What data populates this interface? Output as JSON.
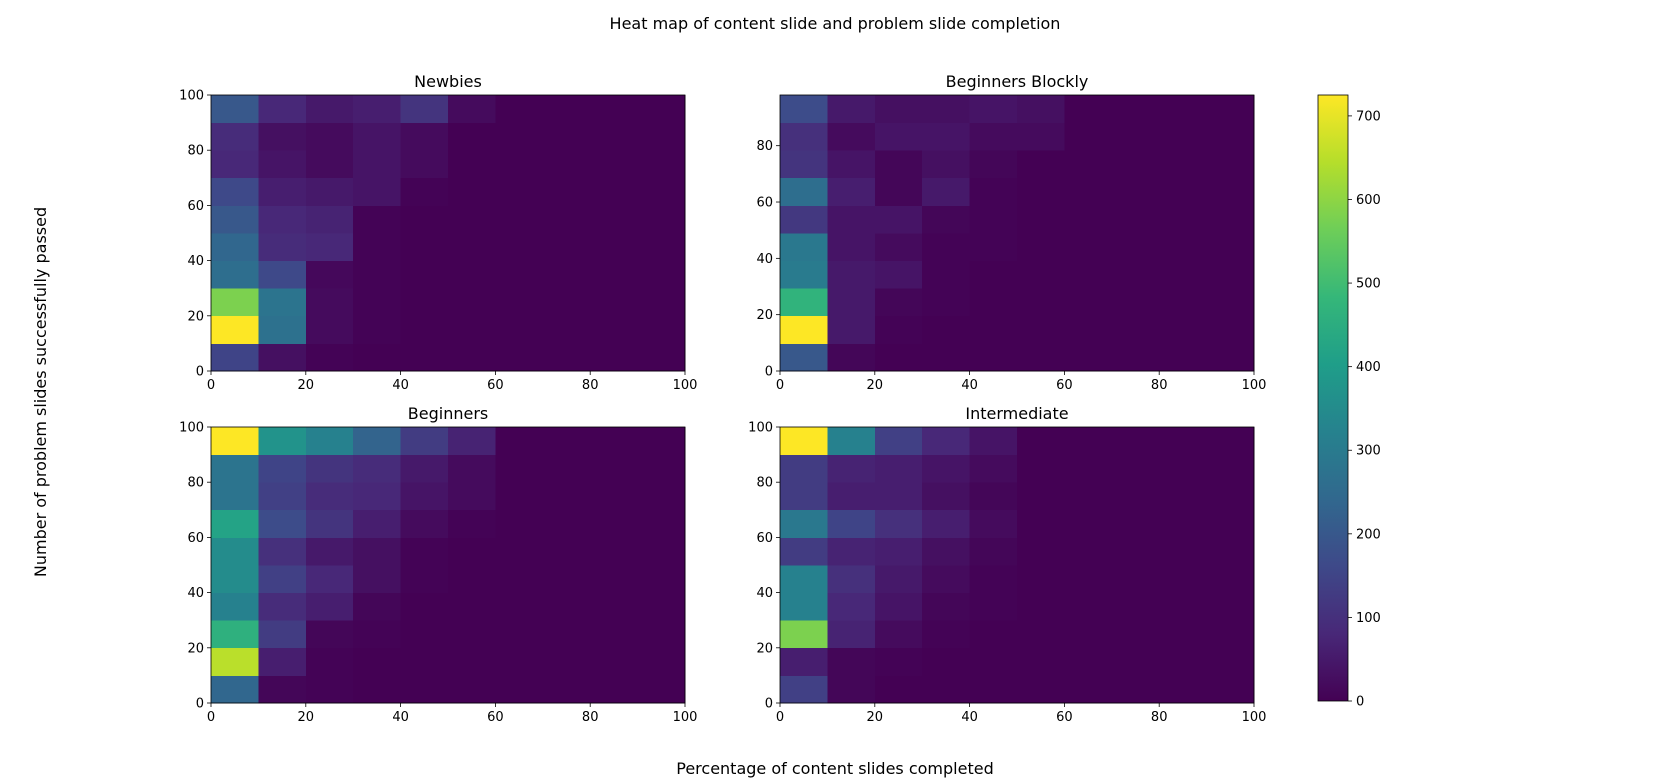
{
  "figure": {
    "suptitle": "Heat map of content slide and problem slide completion",
    "xlabel": "Percentage of content slides completed",
    "ylabel": "Number of problem slides successfully passed"
  },
  "colormap": {
    "name": "viridis",
    "stops": [
      "#440154",
      "#482878",
      "#3e4989",
      "#31688e",
      "#26828e",
      "#1f9e89",
      "#35b779",
      "#6ece58",
      "#b5de2b",
      "#fde725"
    ],
    "min": 0,
    "max": 725,
    "ticks": [
      0,
      100,
      200,
      300,
      400,
      500,
      600,
      700
    ],
    "tick_labels": [
      "0",
      "100",
      "200",
      "300",
      "400",
      "500",
      "600",
      "700"
    ]
  },
  "chart_data": [
    {
      "type": "heatmap",
      "title": "Newbies",
      "xlim": [
        0,
        100
      ],
      "ylim": [
        0,
        100
      ],
      "x_edges": [
        0,
        10,
        20,
        30,
        40,
        50,
        60,
        70,
        80,
        90,
        100
      ],
      "y_edges": [
        0,
        10,
        20,
        30,
        40,
        50,
        60,
        70,
        80,
        90,
        100
      ],
      "xticks": [
        0,
        20,
        40,
        60,
        80,
        100
      ],
      "xtick_labels": [
        "0",
        "20",
        "40",
        "60",
        "80",
        "100"
      ],
      "yticks": [
        0,
        20,
        40,
        60,
        80,
        100
      ],
      "ytick_labels": [
        "0",
        "20",
        "40",
        "60",
        "80",
        "100"
      ],
      "z": [
        [
          150,
          30,
          5,
          0,
          0,
          0,
          0,
          0,
          0,
          0
        ],
        [
          725,
          270,
          20,
          5,
          0,
          0,
          0,
          0,
          0,
          0
        ],
        [
          580,
          280,
          20,
          5,
          0,
          0,
          0,
          0,
          0,
          0
        ],
        [
          260,
          160,
          15,
          5,
          0,
          0,
          0,
          0,
          0,
          0
        ],
        [
          240,
          90,
          80,
          5,
          0,
          0,
          0,
          0,
          0,
          0
        ],
        [
          200,
          80,
          70,
          5,
          0,
          0,
          0,
          0,
          0,
          0
        ],
        [
          160,
          60,
          50,
          40,
          5,
          0,
          0,
          0,
          0,
          0
        ],
        [
          80,
          40,
          20,
          40,
          20,
          0,
          0,
          0,
          0,
          0
        ],
        [
          90,
          30,
          20,
          40,
          20,
          0,
          0,
          0,
          0,
          0
        ],
        [
          200,
          80,
          50,
          60,
          110,
          20,
          0,
          0,
          0,
          0
        ]
      ]
    },
    {
      "type": "heatmap",
      "title": "Beginners Blockly",
      "xlim": [
        0,
        100
      ],
      "ylim": [
        0,
        98
      ],
      "x_edges": [
        0,
        10,
        20,
        30,
        40,
        50,
        60,
        70,
        80,
        90,
        100
      ],
      "y_edges": [
        0,
        9.8,
        19.6,
        29.4,
        39.2,
        49,
        58.8,
        68.6,
        78.4,
        88.2,
        98
      ],
      "xticks": [
        0,
        20,
        40,
        60,
        80,
        100
      ],
      "xtick_labels": [
        "0",
        "20",
        "40",
        "60",
        "80",
        "100"
      ],
      "yticks": [
        0,
        20,
        40,
        60,
        80
      ],
      "ytick_labels": [
        "0",
        "20",
        "40",
        "60",
        "80"
      ],
      "z": [
        [
          200,
          10,
          0,
          0,
          0,
          0,
          0,
          0,
          0,
          0
        ],
        [
          725,
          50,
          5,
          0,
          0,
          0,
          0,
          0,
          0,
          0
        ],
        [
          470,
          50,
          10,
          5,
          0,
          0,
          0,
          0,
          0,
          0
        ],
        [
          300,
          50,
          40,
          5,
          0,
          0,
          0,
          0,
          0,
          0
        ],
        [
          290,
          40,
          20,
          5,
          5,
          0,
          0,
          0,
          0,
          0
        ],
        [
          120,
          40,
          40,
          10,
          5,
          0,
          0,
          0,
          0,
          0
        ],
        [
          260,
          60,
          10,
          50,
          5,
          0,
          0,
          0,
          0,
          0
        ],
        [
          110,
          40,
          10,
          30,
          10,
          0,
          0,
          0,
          0,
          0
        ],
        [
          100,
          20,
          40,
          40,
          20,
          20,
          0,
          0,
          0,
          0
        ],
        [
          170,
          50,
          30,
          30,
          40,
          30,
          0,
          0,
          0,
          0
        ]
      ]
    },
    {
      "type": "heatmap",
      "title": "Beginners",
      "xlim": [
        0,
        100
      ],
      "ylim": [
        0,
        100
      ],
      "x_edges": [
        0,
        10,
        20,
        30,
        40,
        50,
        60,
        70,
        80,
        90,
        100
      ],
      "y_edges": [
        0,
        10,
        20,
        30,
        40,
        50,
        60,
        70,
        80,
        90,
        100
      ],
      "xticks": [
        0,
        20,
        40,
        60,
        80,
        100
      ],
      "xtick_labels": [
        "0",
        "20",
        "40",
        "60",
        "80",
        "100"
      ],
      "yticks": [
        0,
        20,
        40,
        60,
        80,
        100
      ],
      "ytick_labels": [
        "0",
        "20",
        "40",
        "60",
        "80",
        "100"
      ],
      "z": [
        [
          240,
          10,
          5,
          0,
          0,
          0,
          0,
          0,
          0,
          0
        ],
        [
          650,
          60,
          5,
          0,
          0,
          0,
          0,
          0,
          0,
          0
        ],
        [
          460,
          130,
          10,
          5,
          0,
          0,
          0,
          0,
          0,
          0
        ],
        [
          320,
          90,
          60,
          10,
          0,
          0,
          0,
          0,
          0,
          0
        ],
        [
          350,
          140,
          80,
          30,
          5,
          0,
          0,
          0,
          0,
          0
        ],
        [
          350,
          100,
          50,
          30,
          5,
          0,
          0,
          0,
          0,
          0
        ],
        [
          420,
          170,
          110,
          60,
          20,
          5,
          0,
          0,
          0,
          0
        ],
        [
          280,
          140,
          90,
          80,
          40,
          20,
          0,
          0,
          0,
          0
        ],
        [
          280,
          150,
          110,
          90,
          50,
          20,
          0,
          0,
          0,
          0
        ],
        [
          725,
          370,
          320,
          230,
          130,
          70,
          0,
          0,
          0,
          0
        ]
      ]
    },
    {
      "type": "heatmap",
      "title": "Intermediate",
      "xlim": [
        0,
        100
      ],
      "ylim": [
        0,
        100
      ],
      "x_edges": [
        0,
        10,
        20,
        30,
        40,
        50,
        60,
        70,
        80,
        90,
        100
      ],
      "y_edges": [
        0,
        10,
        20,
        30,
        40,
        50,
        60,
        70,
        80,
        90,
        100
      ],
      "xticks": [
        0,
        20,
        40,
        60,
        80,
        100
      ],
      "xtick_labels": [
        "0",
        "20",
        "40",
        "60",
        "80",
        "100"
      ],
      "yticks": [
        0,
        20,
        40,
        60,
        80,
        100
      ],
      "ytick_labels": [
        "0",
        "20",
        "40",
        "60",
        "80",
        "100"
      ],
      "z": [
        [
          140,
          10,
          0,
          0,
          0,
          0,
          0,
          0,
          0,
          0
        ],
        [
          60,
          10,
          5,
          0,
          0,
          0,
          0,
          0,
          0,
          0
        ],
        [
          580,
          70,
          20,
          5,
          0,
          0,
          0,
          0,
          0,
          0
        ],
        [
          320,
          80,
          40,
          10,
          5,
          0,
          0,
          0,
          0,
          0
        ],
        [
          320,
          100,
          50,
          20,
          5,
          0,
          0,
          0,
          0,
          0
        ],
        [
          130,
          70,
          60,
          30,
          10,
          0,
          0,
          0,
          0,
          0
        ],
        [
          290,
          150,
          100,
          60,
          20,
          0,
          0,
          0,
          0,
          0
        ],
        [
          130,
          60,
          60,
          30,
          10,
          0,
          0,
          0,
          0,
          0
        ],
        [
          130,
          70,
          60,
          40,
          20,
          0,
          0,
          0,
          0,
          0
        ],
        [
          725,
          320,
          140,
          80,
          40,
          0,
          0,
          0,
          0,
          0
        ]
      ]
    }
  ]
}
